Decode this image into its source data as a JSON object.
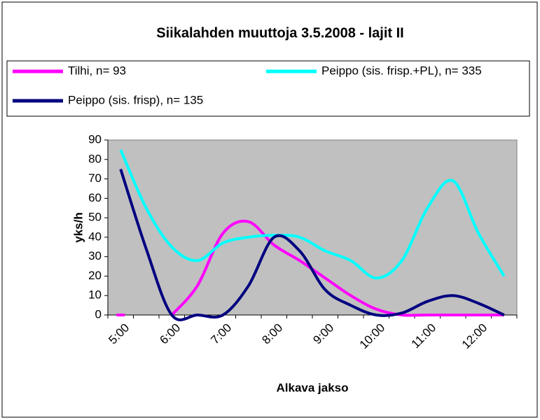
{
  "chart_data": {
    "type": "line",
    "title": "Siikalahden muuttoja 3.5.2008 - lajit II",
    "x_label": "Alkava jakso",
    "y_label": "yks/h",
    "categories": [
      "5:00",
      null,
      "6:00",
      null,
      "7:00",
      null,
      "8:00",
      null,
      "9:00",
      null,
      "10:00",
      null,
      "11:00",
      null,
      "12:00",
      null
    ],
    "series": [
      {
        "name": "Tilhi, n= 93",
        "color": "#ff00ff",
        "values": [
          0,
          null,
          0,
          15,
          42,
          48,
          36,
          28,
          19,
          10,
          3,
          0,
          0,
          0,
          0,
          0
        ]
      },
      {
        "name": "Peippo (sis. frisp.+PL), n= 335",
        "color": "#00ffff",
        "values": [
          85,
          55,
          35,
          28,
          37,
          40,
          41,
          40,
          33,
          28,
          19,
          28,
          55,
          69,
          42,
          20
        ]
      },
      {
        "name": "Peippo (sis. frisp), n= 135",
        "color": "#000080",
        "values": [
          75,
          34,
          0,
          0,
          0,
          15,
          40,
          33,
          13,
          5,
          0,
          1,
          7,
          10,
          6,
          0
        ]
      }
    ],
    "ylim": [
      0,
      90
    ],
    "yticks": [
      0,
      10,
      20,
      30,
      40,
      50,
      60,
      70,
      80,
      90
    ],
    "smooth": true
  }
}
